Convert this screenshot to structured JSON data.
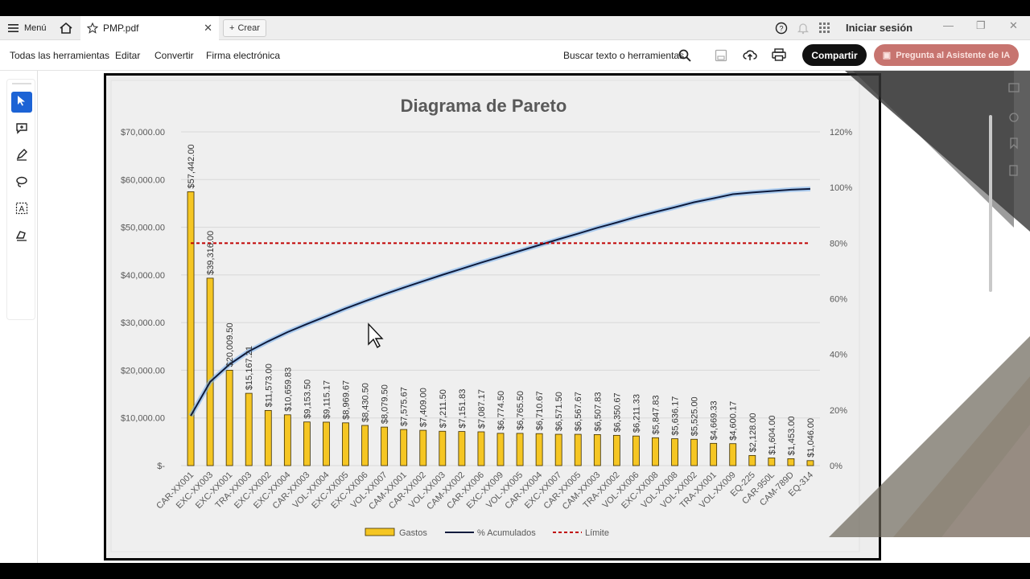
{
  "tabbar": {
    "menu_label": "Menú",
    "tab_title": "PMP.pdf",
    "crear_label": "Crear",
    "signin_label": "Iniciar sesión"
  },
  "toolbar": {
    "items": [
      "Todas las herramientas",
      "Editar",
      "Convertir",
      "Firma electrónica"
    ],
    "search_label": "Buscar texto o herramientas",
    "share_label": "Compartir",
    "ai_label": "Pregunta al Asistente de IA"
  },
  "colors": {
    "bar": "#f5c623",
    "bar_stroke": "#3a2c00",
    "cumulative_line": "#0e1b3d",
    "cumulative_glow": "#7fb4ef",
    "limit_line": "#c00000",
    "share_bg": "#111111",
    "active_tool": "#1c63d5"
  },
  "chart_data": {
    "type": "bar",
    "title": "Diagrama de Pareto",
    "categories": [
      "CAR-XX001",
      "EXC-XX003",
      "EXC-XX001",
      "TRA-XX003",
      "EXC-XX002",
      "EXC-XX004",
      "CAR-XX003",
      "VOL-XX004",
      "EXC-XX005",
      "EXC-XX006",
      "VOL-XX007",
      "CAM-XX001",
      "CAR-XX002",
      "VOL-XX003",
      "CAM-XX002",
      "CAR-XX006",
      "EXC-XX009",
      "VOL-XX005",
      "CAR-XX004",
      "EXC-XX007",
      "CAR-XX005",
      "CAM-XX003",
      "TRA-XX002",
      "VOL-XX006",
      "EXC-XX008",
      "VOL-XX008",
      "VOL-XX002",
      "TRA-XX001",
      "VOL-XX009",
      "EQ-225",
      "CAR-950L",
      "CAM-789D",
      "EQ-314"
    ],
    "values": [
      57442.0,
      39316.0,
      20009.5,
      15167.21,
      11573.0,
      10659.83,
      9153.5,
      9115.17,
      8969.67,
      8430.5,
      8079.5,
      7575.67,
      7409.0,
      7211.5,
      7151.83,
      7087.17,
      6774.5,
      6765.5,
      6710.67,
      6571.5,
      6567.67,
      6507.83,
      6350.67,
      6211.33,
      5847.83,
      5636.17,
      5525.0,
      4669.33,
      4600.17,
      2128.0,
      1604.0,
      1453.0,
      1046.0
    ],
    "labels": [
      "$57,442.00",
      "$39,316.00",
      "$20,009.50",
      "$15,167.21",
      "$11,573.00",
      "$10,659.83",
      "$9,153.50",
      "$9,115.17",
      "$8,969.67",
      "$8,430.50",
      "$8,079.50",
      "$7,575.67",
      "$7,409.00",
      "$7,211.50",
      "$7,151.83",
      "$7,087.17",
      "$6,774.50",
      "$6,765.50",
      "$6,710.67",
      "$6,571.50",
      "$6,567.67",
      "$6,507.83",
      "$6,350.67",
      "$6,211.33",
      "$5,847.83",
      "$5,636.17",
      "$5,525.00",
      "$4,669.33",
      "$4,600.17",
      "$2,128.00",
      "$1,604.00",
      "$1,453.00",
      "$1,046.00"
    ],
    "cumulative_pct": [
      17.9,
      30.1,
      36.4,
      41.1,
      44.7,
      48.0,
      50.9,
      53.7,
      56.5,
      59.1,
      61.6,
      64.0,
      66.3,
      68.6,
      70.8,
      73.0,
      75.1,
      77.2,
      79.3,
      81.4,
      83.4,
      85.5,
      87.4,
      89.4,
      91.2,
      92.9,
      94.7,
      96.1,
      97.6,
      98.2,
      98.7,
      99.2,
      99.5
    ],
    "limit_pct": 80,
    "y_left": {
      "min": 0,
      "max": 70000,
      "ticks": [
        "$-",
        "$10,000.00",
        "$20,000.00",
        "$30,000.00",
        "$40,000.00",
        "$50,000.00",
        "$60,000.00",
        "$70,000.00"
      ]
    },
    "y_right": {
      "min": 0,
      "max": 120,
      "ticks": [
        "0%",
        "20%",
        "40%",
        "60%",
        "80%",
        "100%",
        "120%"
      ]
    },
    "legend": [
      "Gastos",
      "% Acumulados",
      "Límite"
    ],
    "legend_position": "bottom",
    "grid": true
  }
}
